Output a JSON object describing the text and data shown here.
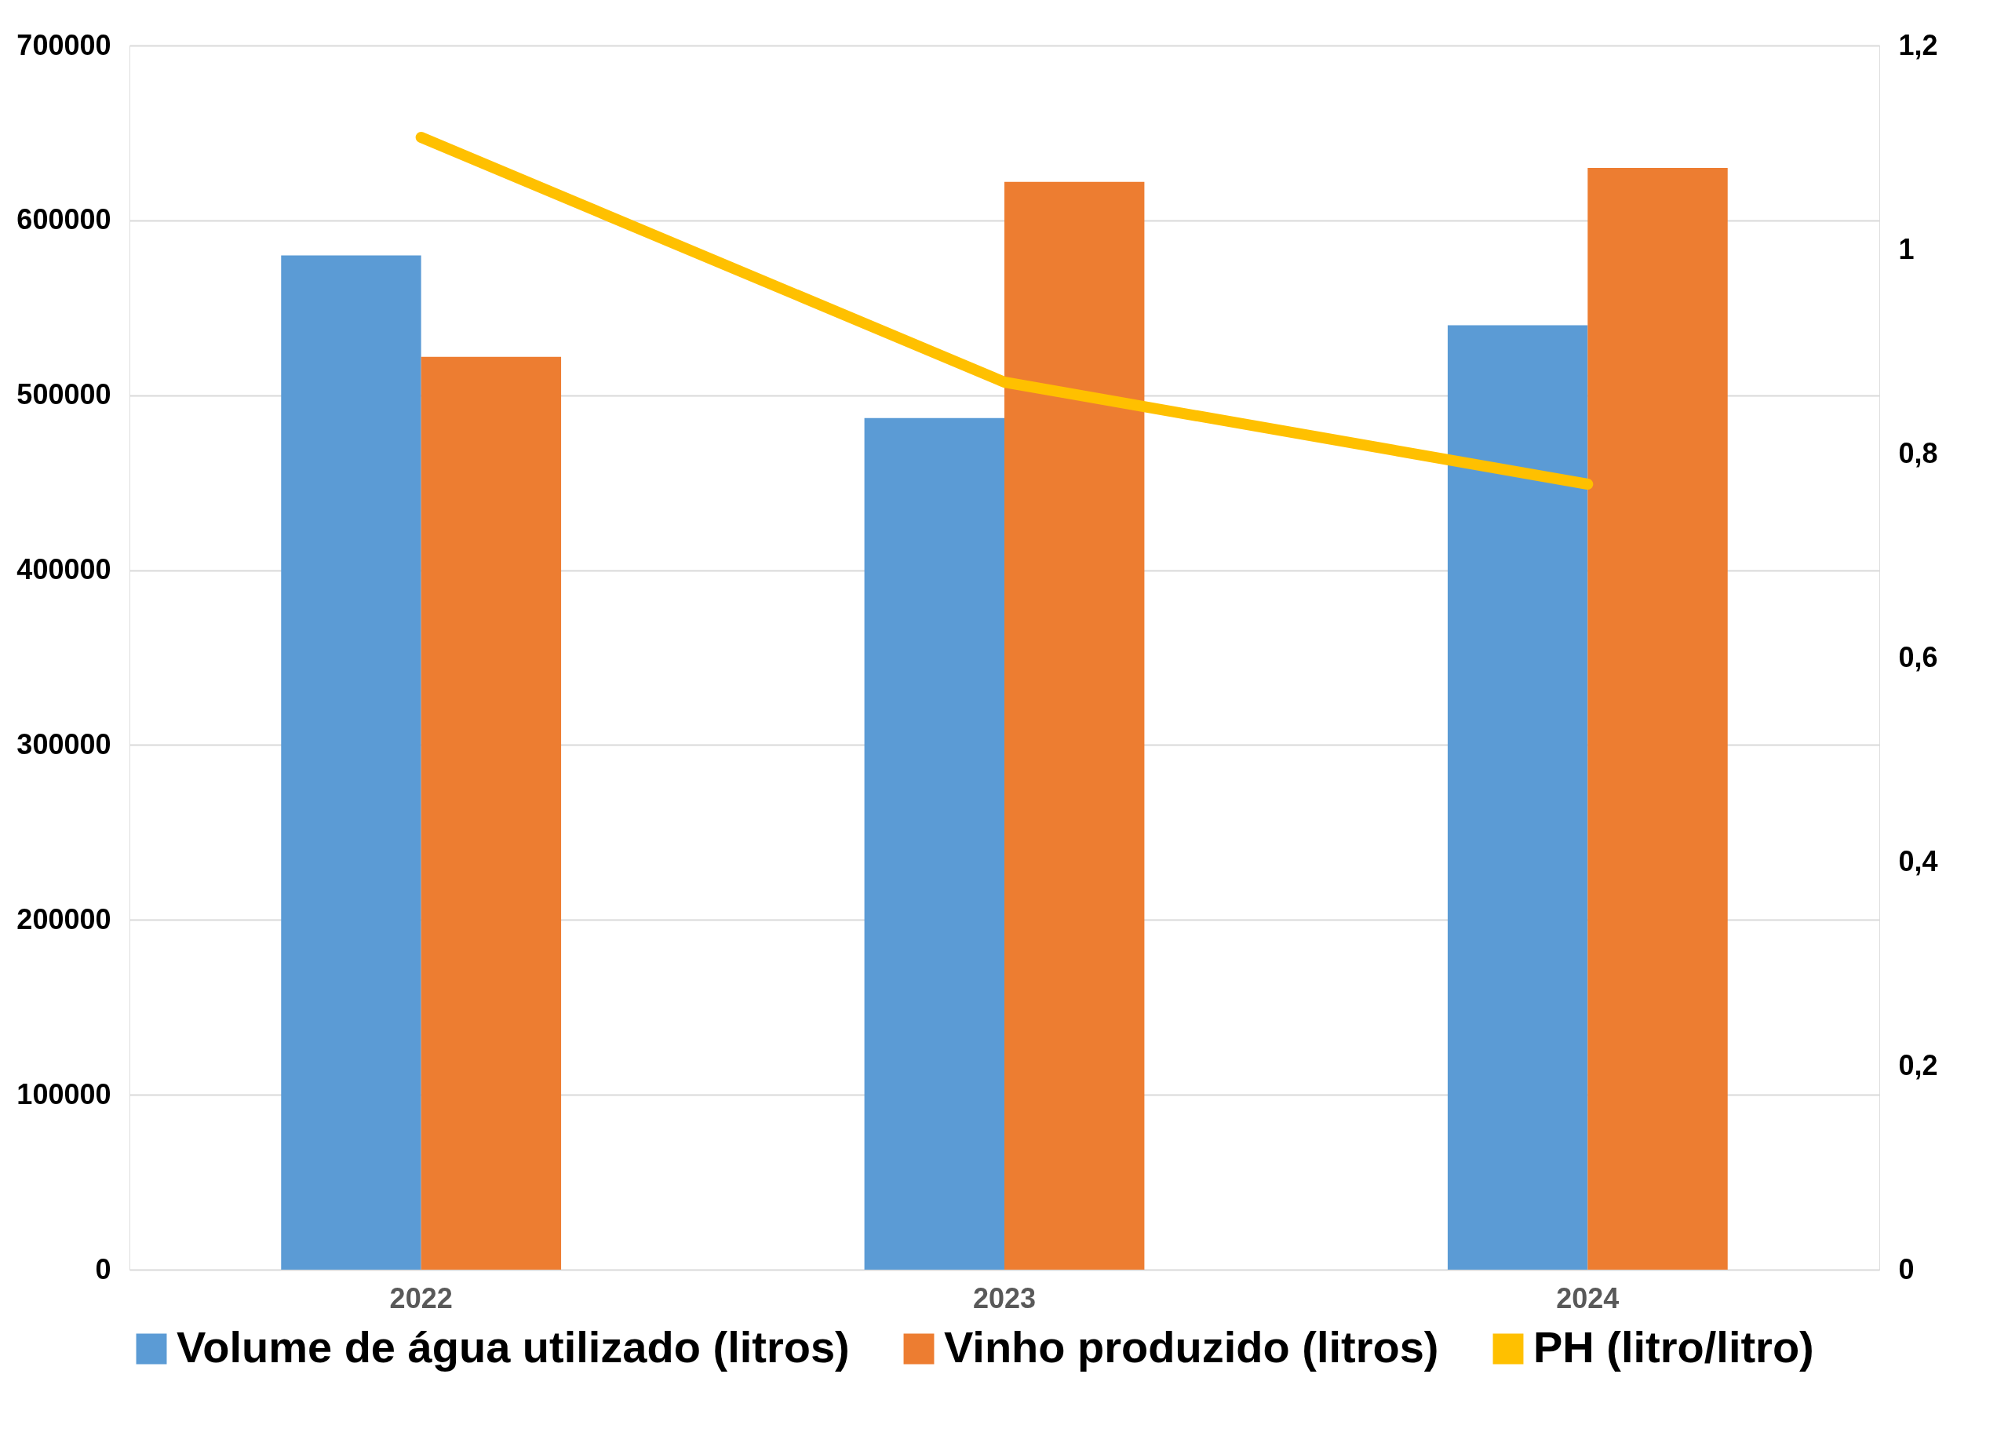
{
  "chart_data": {
    "type": "bar",
    "categories": [
      "2022",
      "2023",
      "2024"
    ],
    "series": [
      {
        "name": "Volume de água utilizado (litros)",
        "color": "#5b9bd5",
        "values": [
          580000,
          487000,
          540000
        ]
      },
      {
        "name": "Vinho produzido (litros)",
        "color": "#ed7d31",
        "values": [
          522000,
          622000,
          630000
        ]
      },
      {
        "name": "PH (litro/litro)",
        "color": "#ffc000",
        "type": "line",
        "axis": "y2",
        "values": [
          1.11,
          0.87,
          0.77
        ]
      }
    ],
    "ylim": [
      0,
      700000
    ],
    "yticks": [
      0,
      100000,
      200000,
      300000,
      400000,
      500000,
      600000,
      700000
    ],
    "y2lim": [
      0,
      1.2
    ],
    "y2ticks": [
      0,
      {
        "value": 0.2,
        "label": "0,2"
      },
      {
        "value": 0.4,
        "label": "0,4"
      },
      {
        "value": 0.6,
        "label": "0,6"
      },
      {
        "value": 0.8,
        "label": "0,8"
      },
      1,
      {
        "value": 1.2,
        "label": "1,2"
      }
    ],
    "grid": "y",
    "legend": "bottom",
    "marker": "none",
    "line_style": "solid"
  }
}
